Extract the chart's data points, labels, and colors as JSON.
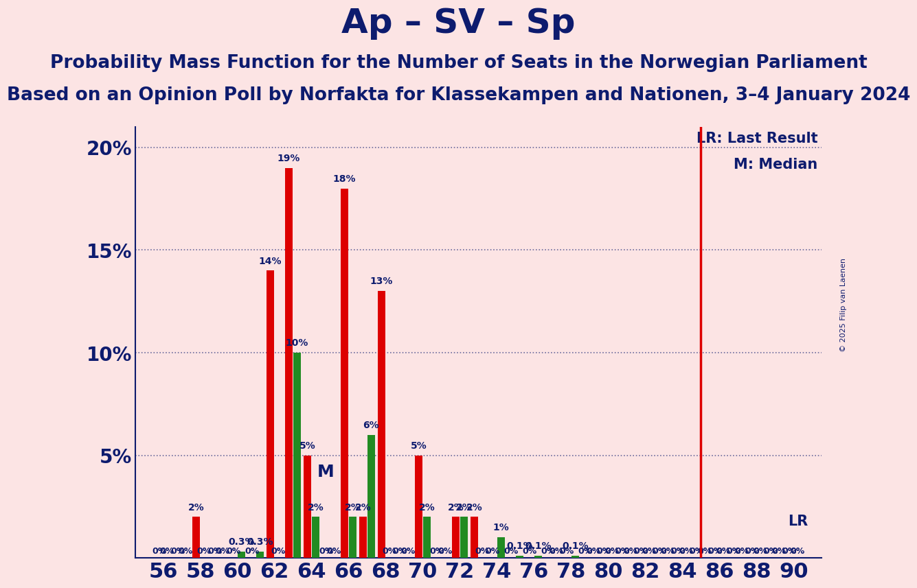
{
  "title": "Ap – SV – Sp",
  "subtitle1": "Probability Mass Function for the Number of Seats in the Norwegian Parliament",
  "subtitle2": "Based on an Opinion Poll by Norfakta for Klassekampen and Nationen, 3–4 January 2024",
  "copyright": "© 2025 Filip van Laenen",
  "background_color": "#fce4e4",
  "bar_color_red": "#dd0000",
  "bar_color_green": "#228b22",
  "lr_line_color": "#dd0000",
  "text_color": "#0d1b6e",
  "all_seats": [
    56,
    57,
    58,
    59,
    60,
    61,
    62,
    63,
    64,
    65,
    66,
    67,
    68,
    69,
    70,
    71,
    72,
    73,
    74,
    75,
    76,
    77,
    78,
    79,
    80,
    81,
    82,
    83,
    84,
    85,
    86,
    87,
    88,
    89,
    90
  ],
  "red_values": [
    0.0,
    0.0,
    2.0,
    0.0,
    0.0,
    0.0,
    14.0,
    19.0,
    5.0,
    0.0,
    18.0,
    2.0,
    13.0,
    0.0,
    5.0,
    0.0,
    2.0,
    2.0,
    0.0,
    0.0,
    0.0,
    0.0,
    0.0,
    0.0,
    0.0,
    0.0,
    0.0,
    0.0,
    0.0,
    0.0,
    0.0,
    0.0,
    0.0,
    0.0,
    0.0
  ],
  "green_values": [
    0.0,
    0.0,
    0.0,
    0.0,
    0.3,
    0.3,
    0.0,
    10.0,
    2.0,
    0.0,
    2.0,
    6.0,
    0.0,
    0.0,
    2.0,
    0.0,
    2.0,
    0.0,
    1.0,
    0.1,
    0.1,
    0.0,
    0.1,
    0.0,
    0.0,
    0.0,
    0.0,
    0.0,
    0.0,
    0.0,
    0.0,
    0.0,
    0.0,
    0.0,
    0.0
  ],
  "seats_display": [
    56,
    58,
    60,
    62,
    64,
    66,
    68,
    70,
    72,
    74,
    76,
    78,
    80,
    82,
    84,
    86,
    88,
    90
  ],
  "median_seat": 64,
  "lr_seat": 85,
  "ylim": [
    0,
    21
  ],
  "yticks": [
    0,
    5,
    10,
    15,
    20
  ],
  "yticklabels": [
    "",
    "5%",
    "10%",
    "15%",
    "20%"
  ],
  "title_fontsize": 36,
  "subtitle1_fontsize": 19,
  "subtitle2_fontsize": 19,
  "bar_label_fontsize": 10,
  "legend_fontsize": 15,
  "xtick_fontsize": 22,
  "ytick_fontsize": 20
}
